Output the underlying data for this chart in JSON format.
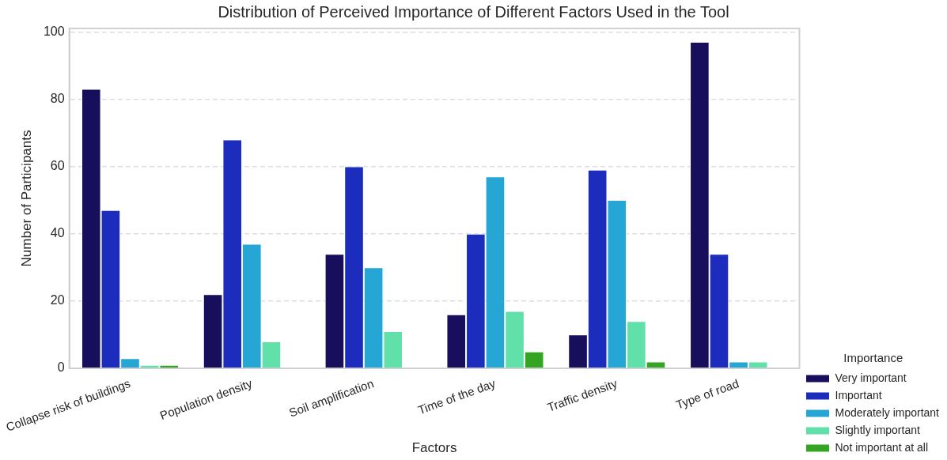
{
  "chart_data": {
    "type": "bar",
    "title": "Distribution of Perceived Importance of Different Factors Used in the Tool",
    "xlabel": "Factors",
    "ylabel": "Number of Participants",
    "legend_title": "Importance",
    "categories": [
      "Collapse risk of buildings",
      "Population density",
      "Soil amplification",
      "Time of the day",
      "Traffic density",
      "Type of road"
    ],
    "series": [
      {
        "name": "Very important",
        "color": "#170f5c",
        "values": [
          83,
          22,
          34,
          16,
          10,
          97
        ]
      },
      {
        "name": "Important",
        "color": "#1c2dbd",
        "values": [
          47,
          68,
          60,
          40,
          59,
          34
        ]
      },
      {
        "name": "Moderately important",
        "color": "#26a6d4",
        "values": [
          3,
          37,
          30,
          57,
          50,
          2
        ]
      },
      {
        "name": "Slightly important",
        "color": "#62e0aa",
        "values": [
          1,
          8,
          11,
          17,
          14,
          2
        ]
      },
      {
        "name": "Not important at all",
        "color": "#33a523",
        "values": [
          1,
          null,
          null,
          5,
          2,
          null
        ]
      }
    ],
    "ylim": [
      0,
      101
    ],
    "yticks": [
      0,
      20,
      40,
      60,
      80,
      100
    ],
    "grid": "y",
    "legend": "right"
  }
}
